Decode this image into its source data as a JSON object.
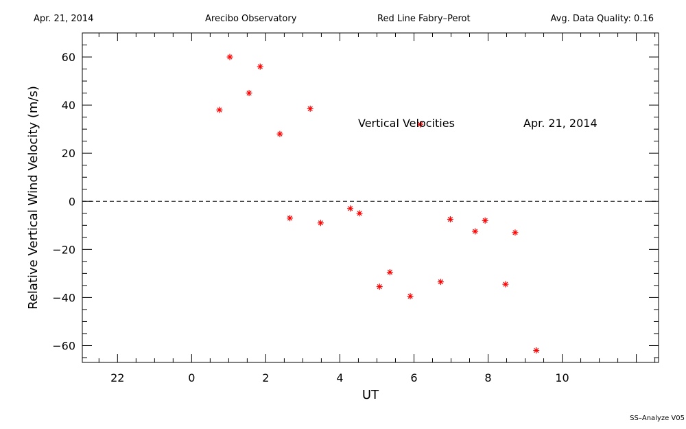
{
  "header": {
    "date": "Apr. 21, 2014",
    "site": "Arecibo Observatory",
    "instrument": "Red Line Fabry–Perot",
    "quality": "Avg. Data Quality: 0.16"
  },
  "footer": {
    "version": "SS–Analyze V05"
  },
  "chart_data": {
    "type": "scatter",
    "title": "",
    "xlabel": "UT",
    "ylabel": "Relative Vertical Wind Velocity (m/s)",
    "xlim": [
      -2.95,
      12.6
    ],
    "ylim": [
      -67,
      70
    ],
    "x_ticks": [
      22,
      0,
      2,
      4,
      6,
      8,
      10
    ],
    "x_tick_values": [
      -2,
      0,
      2,
      4,
      6,
      8,
      10
    ],
    "y_ticks": [
      60,
      40,
      20,
      0,
      -20,
      -40,
      -60
    ],
    "y_tick_labels": [
      "60",
      "40",
      "20",
      "0",
      "−20",
      "−40",
      "−60"
    ],
    "zero_line": "dashed",
    "grid": false,
    "marker": "asterisk",
    "marker_color": "#ff0000",
    "annotations": [
      "Vertical Velocities",
      "Apr. 21, 2014"
    ],
    "series": [
      {
        "x": [
          0.75,
          1.03,
          1.55,
          1.85,
          2.38,
          2.65,
          3.2,
          3.48,
          4.28,
          4.53,
          5.07,
          5.35,
          5.9,
          6.17,
          6.72,
          6.98,
          7.65,
          7.92,
          8.47,
          8.73,
          9.3
        ],
        "y": [
          38,
          60,
          45,
          56,
          28,
          -7,
          38.5,
          -9,
          -3,
          -5,
          -35.5,
          -29.5,
          -39.5,
          32,
          -33.5,
          -7.5,
          -12.5,
          -8,
          -34.5,
          -13,
          -62
        ]
      }
    ]
  }
}
